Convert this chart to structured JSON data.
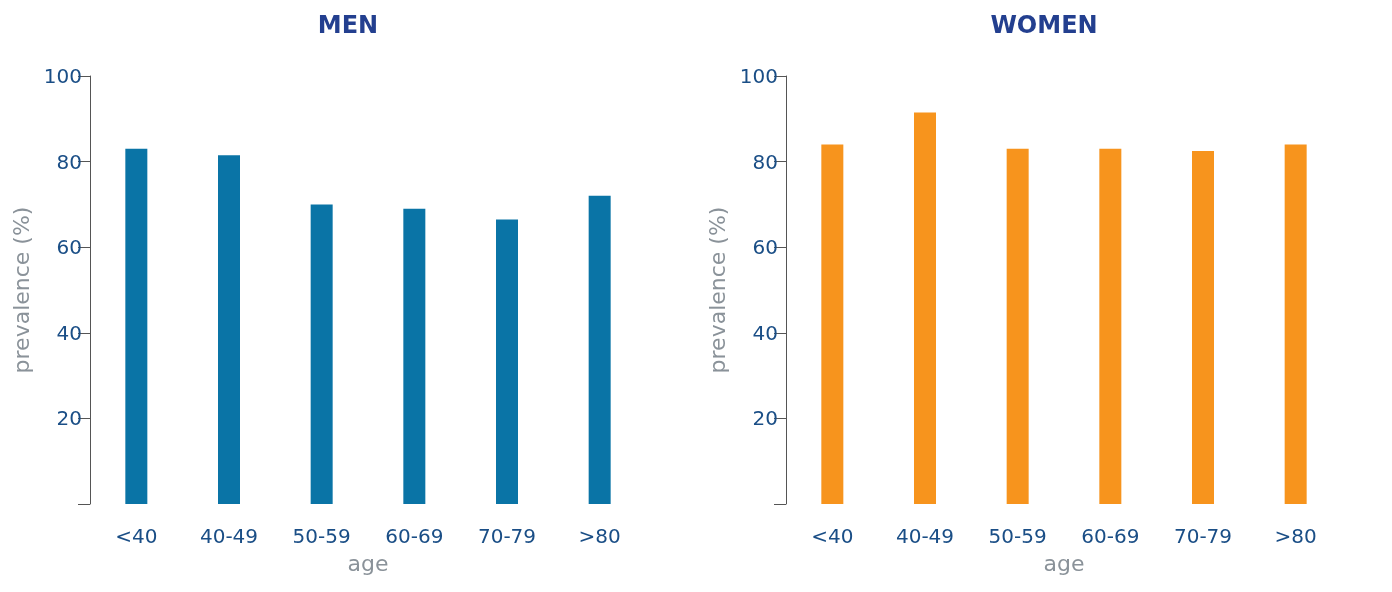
{
  "chart_data": [
    {
      "type": "bar",
      "title": "MEN",
      "xlabel": "age",
      "ylabel": "prevalence (%)",
      "categories": [
        "<40",
        "40-49",
        "50-59",
        "60-69",
        "70-79",
        ">80"
      ],
      "series": [
        {
          "color": "#0a74a6",
          "values": [
            83,
            81.5,
            70,
            69,
            66.5,
            72
          ]
        }
      ],
      "ylim": [
        0,
        100
      ],
      "yticks": [
        {
          "value": 0,
          "label": null
        },
        20,
        40,
        60,
        80,
        100
      ]
    },
    {
      "type": "bar",
      "title": "WOMEN",
      "xlabel": "age",
      "ylabel": "prevalence (%)",
      "categories": [
        "<40",
        "40-49",
        "50-59",
        "60-69",
        "70-79",
        ">80"
      ],
      "series": [
        {
          "color": "#f7941d",
          "values": [
            84,
            91.5,
            83,
            83,
            82.5,
            84
          ]
        }
      ],
      "ylim": [
        0,
        100
      ],
      "yticks": [
        {
          "value": 0,
          "label": null
        },
        20,
        40,
        60,
        80,
        100
      ]
    }
  ]
}
